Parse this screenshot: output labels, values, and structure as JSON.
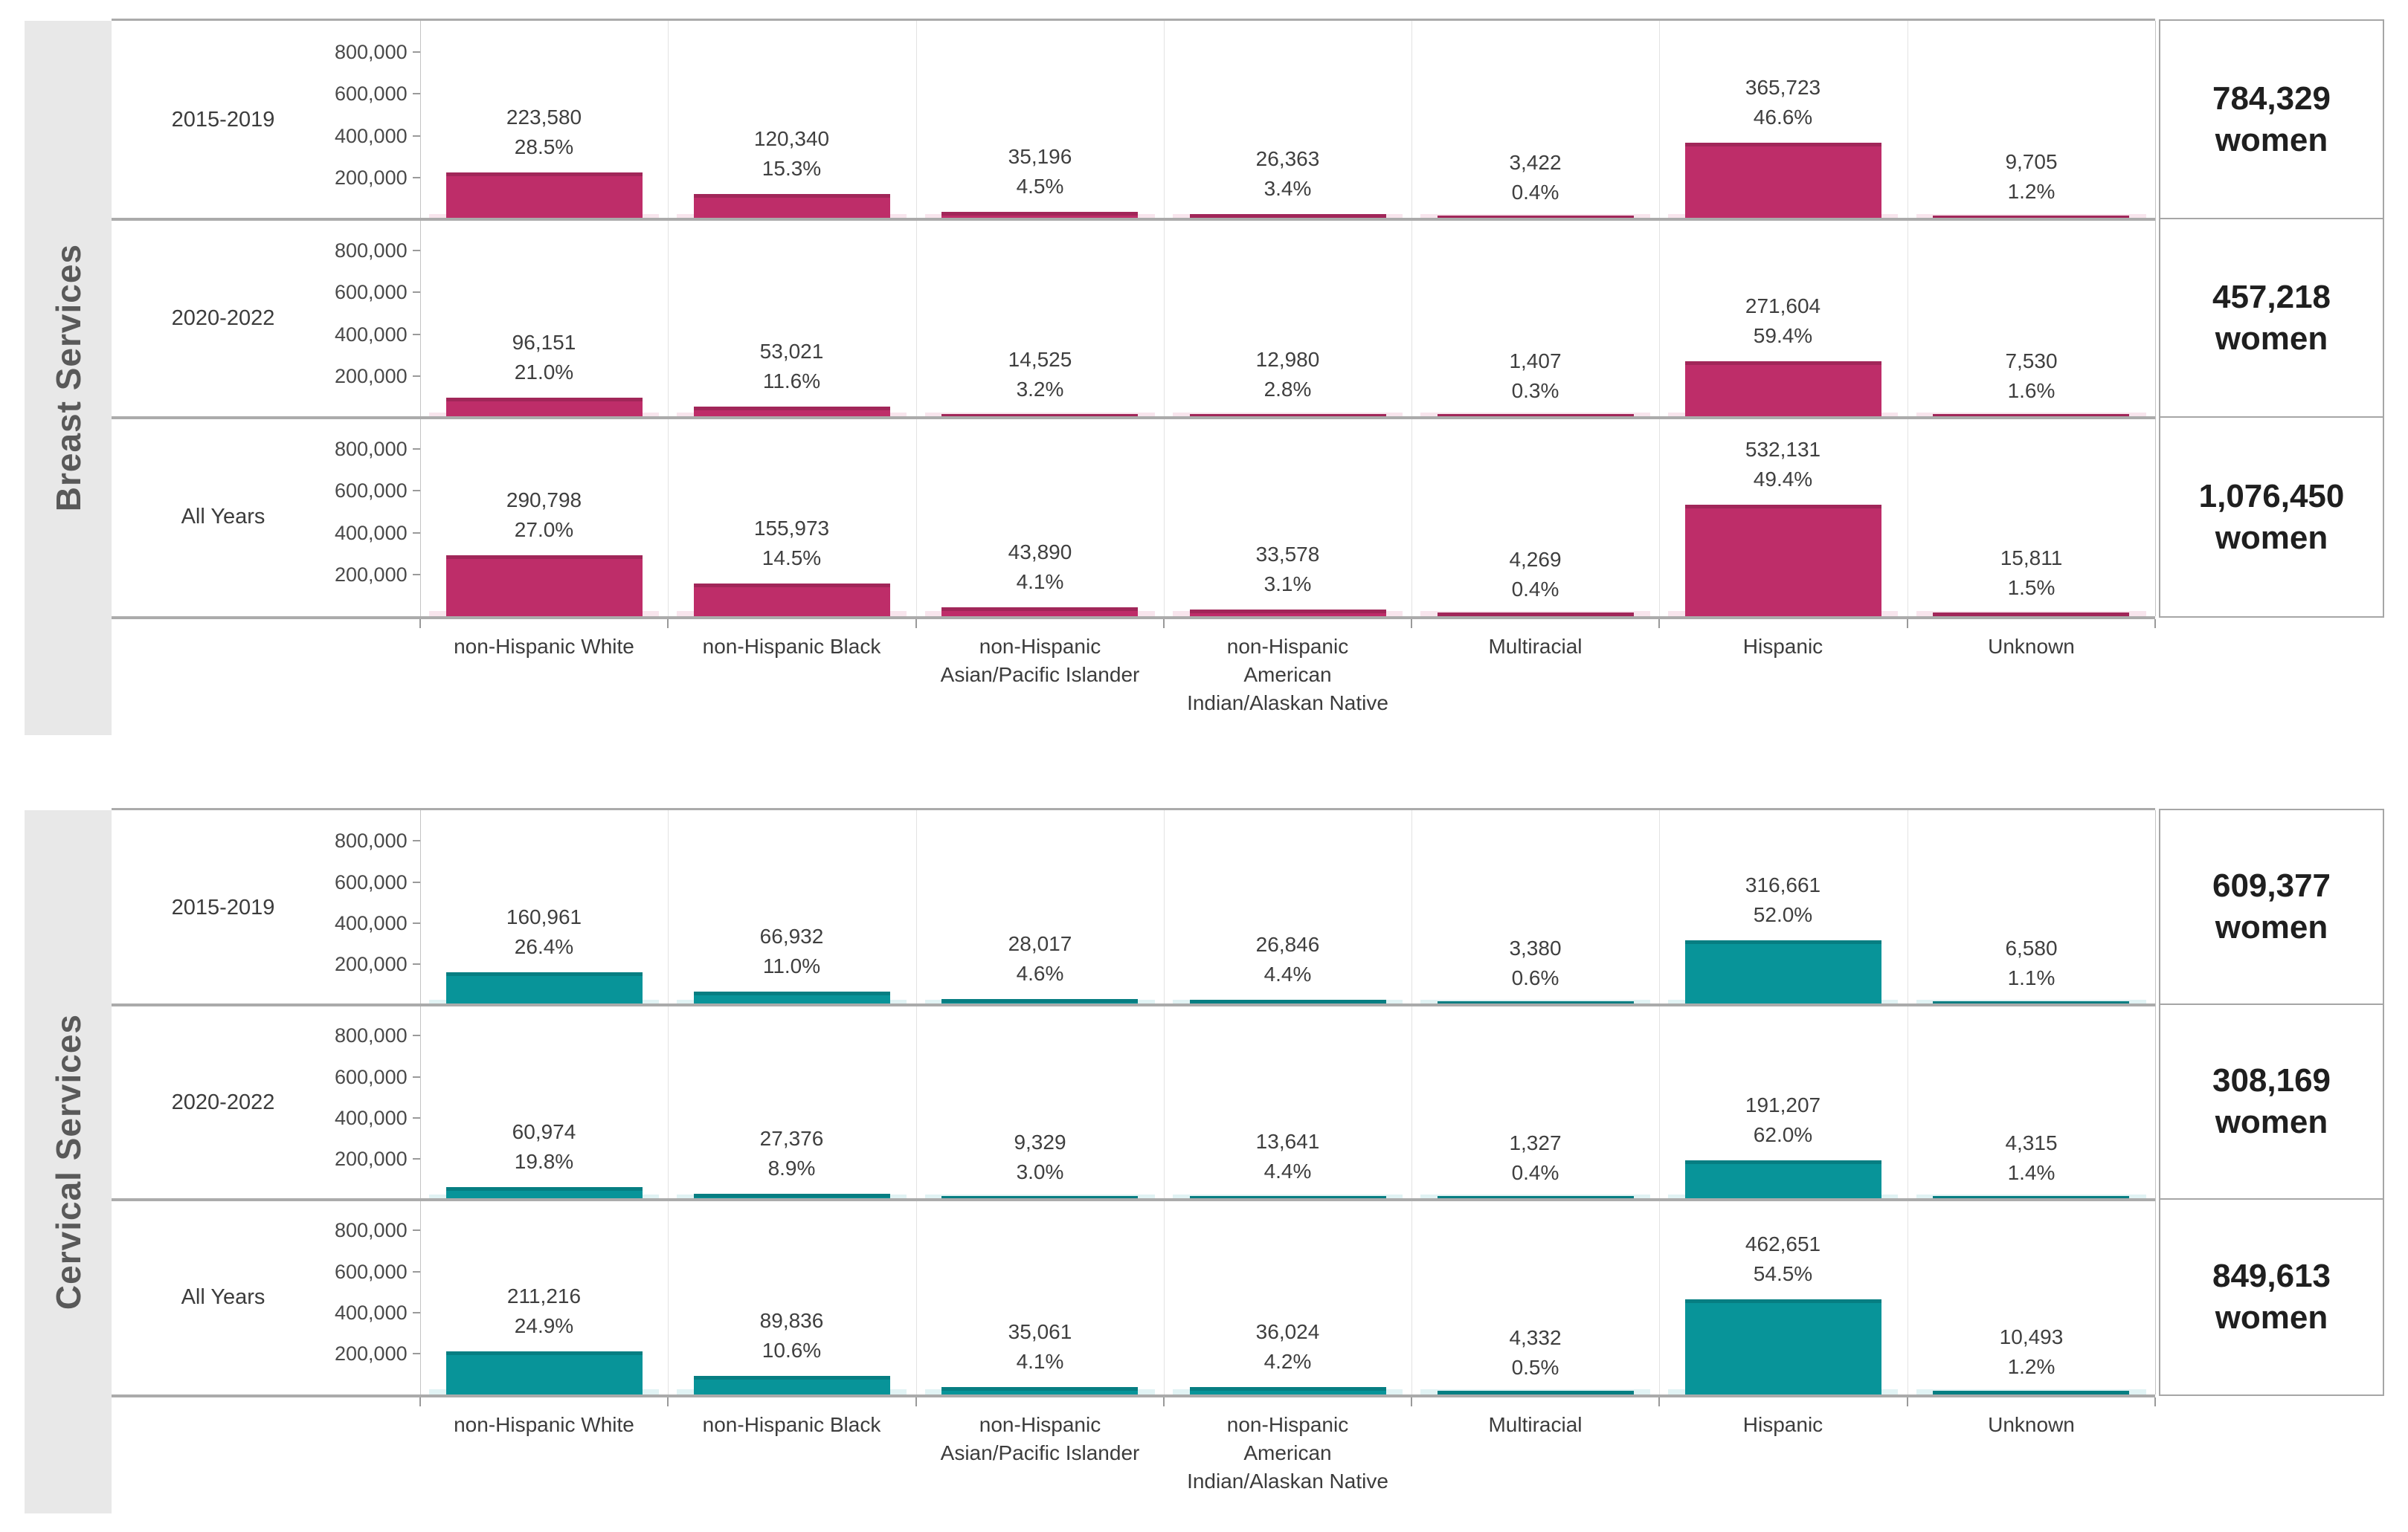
{
  "colors": {
    "breast_bar": "#be2d69",
    "breast_bar_light": "#f3cfde",
    "cervical_bar": "#089499",
    "cervical_bar_light": "#c9e9eb",
    "grid_line": "#ababab",
    "strip_background": "#e8e8e8",
    "text": "#3f3f3f"
  },
  "chart_data": [
    {
      "type": "bar",
      "panel": "Breast Services",
      "bar_color": "#be2d69",
      "bar_light": "#f3cfde",
      "ylim": [
        0,
        950000
      ],
      "y_ticks": [
        {
          "value": 800000,
          "label": "800,000"
        },
        {
          "value": 600000,
          "label": "600,000"
        },
        {
          "value": 400000,
          "label": "400,000"
        },
        {
          "value": 200000,
          "label": "200,000"
        }
      ],
      "categories": [
        "non-Hispanic White",
        "non-Hispanic Black",
        "non-Hispanic\nAsian/Pacific Islander",
        "non-Hispanic\nAmerican\nIndian/Alaskan Native",
        "Multiracial",
        "Hispanic",
        "Unknown"
      ],
      "rows": [
        {
          "label": "2015-2019",
          "total": "784,329",
          "total_unit": "women",
          "bars": [
            {
              "value": 223580,
              "label": "223,580",
              "pct": "28.5%"
            },
            {
              "value": 120340,
              "label": "120,340",
              "pct": "15.3%"
            },
            {
              "value": 35196,
              "label": "35,196",
              "pct": "4.5%"
            },
            {
              "value": 26363,
              "label": "26,363",
              "pct": "3.4%"
            },
            {
              "value": 3422,
              "label": "3,422",
              "pct": "0.4%"
            },
            {
              "value": 365723,
              "label": "365,723",
              "pct": "46.6%"
            },
            {
              "value": 9705,
              "label": "9,705",
              "pct": "1.2%"
            }
          ]
        },
        {
          "label": "2020-2022",
          "total": "457,218",
          "total_unit": "women",
          "bars": [
            {
              "value": 96151,
              "label": "96,151",
              "pct": "21.0%"
            },
            {
              "value": 53021,
              "label": "53,021",
              "pct": "11.6%"
            },
            {
              "value": 14525,
              "label": "14,525",
              "pct": "3.2%"
            },
            {
              "value": 12980,
              "label": "12,980",
              "pct": "2.8%"
            },
            {
              "value": 1407,
              "label": "1,407",
              "pct": "0.3%"
            },
            {
              "value": 271604,
              "label": "271,604",
              "pct": "59.4%"
            },
            {
              "value": 7530,
              "label": "7,530",
              "pct": "1.6%"
            }
          ]
        },
        {
          "label": "All Years",
          "total": "1,076,450",
          "total_unit": "women",
          "bars": [
            {
              "value": 290798,
              "label": "290,798",
              "pct": "27.0%"
            },
            {
              "value": 155973,
              "label": "155,973",
              "pct": "14.5%"
            },
            {
              "value": 43890,
              "label": "43,890",
              "pct": "4.1%"
            },
            {
              "value": 33578,
              "label": "33,578",
              "pct": "3.1%"
            },
            {
              "value": 4269,
              "label": "4,269",
              "pct": "0.4%"
            },
            {
              "value": 532131,
              "label": "532,131",
              "pct": "49.4%"
            },
            {
              "value": 15811,
              "label": "15,811",
              "pct": "1.5%"
            }
          ]
        }
      ]
    },
    {
      "type": "bar",
      "panel": "Cervical Services",
      "bar_color": "#089499",
      "bar_light": "#c9e9eb",
      "ylim": [
        0,
        950000
      ],
      "y_ticks": [
        {
          "value": 800000,
          "label": "800,000"
        },
        {
          "value": 600000,
          "label": "600,000"
        },
        {
          "value": 400000,
          "label": "400,000"
        },
        {
          "value": 200000,
          "label": "200,000"
        }
      ],
      "categories": [
        "non-Hispanic White",
        "non-Hispanic Black",
        "non-Hispanic\nAsian/Pacific Islander",
        "non-Hispanic\nAmerican\nIndian/Alaskan Native",
        "Multiracial",
        "Hispanic",
        "Unknown"
      ],
      "rows": [
        {
          "label": "2015-2019",
          "total": "609,377",
          "total_unit": "women",
          "bars": [
            {
              "value": 160961,
              "label": "160,961",
              "pct": "26.4%"
            },
            {
              "value": 66932,
              "label": "66,932",
              "pct": "11.0%"
            },
            {
              "value": 28017,
              "label": "28,017",
              "pct": "4.6%"
            },
            {
              "value": 26846,
              "label": "26,846",
              "pct": "4.4%"
            },
            {
              "value": 3380,
              "label": "3,380",
              "pct": "0.6%"
            },
            {
              "value": 316661,
              "label": "316,661",
              "pct": "52.0%"
            },
            {
              "value": 6580,
              "label": "6,580",
              "pct": "1.1%"
            }
          ]
        },
        {
          "label": "2020-2022",
          "total": "308,169",
          "total_unit": "women",
          "bars": [
            {
              "value": 60974,
              "label": "60,974",
              "pct": "19.8%"
            },
            {
              "value": 27376,
              "label": "27,376",
              "pct": "8.9%"
            },
            {
              "value": 9329,
              "label": "9,329",
              "pct": "3.0%"
            },
            {
              "value": 13641,
              "label": "13,641",
              "pct": "4.4%"
            },
            {
              "value": 1327,
              "label": "1,327",
              "pct": "0.4%"
            },
            {
              "value": 191207,
              "label": "191,207",
              "pct": "62.0%"
            },
            {
              "value": 4315,
              "label": "4,315",
              "pct": "1.4%"
            }
          ]
        },
        {
          "label": "All Years",
          "total": "849,613",
          "total_unit": "women",
          "bars": [
            {
              "value": 211216,
              "label": "211,216",
              "pct": "24.9%"
            },
            {
              "value": 89836,
              "label": "89,836",
              "pct": "10.6%"
            },
            {
              "value": 35061,
              "label": "35,061",
              "pct": "4.1%"
            },
            {
              "value": 36024,
              "label": "36,024",
              "pct": "4.2%"
            },
            {
              "value": 4332,
              "label": "4,332",
              "pct": "0.5%"
            },
            {
              "value": 462651,
              "label": "462,651",
              "pct": "54.5%"
            },
            {
              "value": 10493,
              "label": "10,493",
              "pct": "1.2%"
            }
          ]
        }
      ]
    }
  ]
}
